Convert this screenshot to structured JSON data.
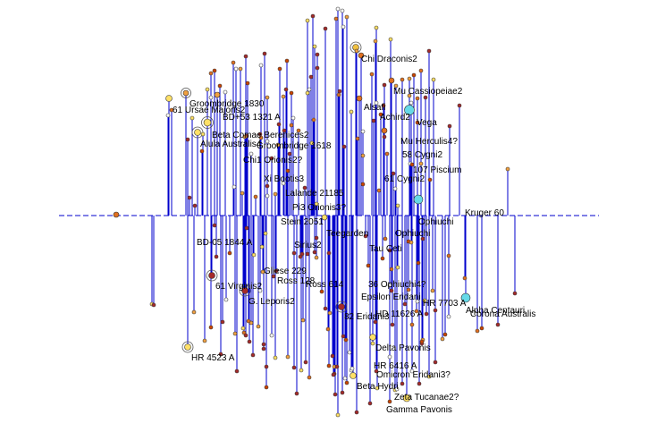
{
  "view": {
    "background": "#ffffff",
    "stem_color": "#0000cc",
    "baseline_color": "#0000cc"
  },
  "labels": [
    {
      "text": "Chi Draconis2"
    },
    {
      "text": "Mu Cassiopeiae2"
    },
    {
      "text": "Groombridge 1830"
    },
    {
      "text": "61 Ursae Majoris2"
    },
    {
      "text": "BD+53 1321 A"
    },
    {
      "text": "Alsafi"
    },
    {
      "text": "Achird2"
    },
    {
      "text": "Vega"
    },
    {
      "text": "Beta Comae Berenices2"
    },
    {
      "text": "Alula Australis4"
    },
    {
      "text": "Groombridge 1618"
    },
    {
      "text": "Mu Herculis4?"
    },
    {
      "text": "Chi1 Orionis2?"
    },
    {
      "text": "58 Cygni2"
    },
    {
      "text": "107 Piscium"
    },
    {
      "text": "61 Cygni2"
    },
    {
      "text": "Xi Bootis3"
    },
    {
      "text": "Lalande 21185"
    },
    {
      "text": "Pi3 Orionis3?"
    },
    {
      "text": "Kruger 60"
    },
    {
      "text": "Ophiuchi"
    },
    {
      "text": "Ophiuchi"
    },
    {
      "text": "Stein 2051"
    },
    {
      "text": "Sirius2"
    },
    {
      "text": "Teegarden"
    },
    {
      "text": "Tau Ceti"
    },
    {
      "text": "BD-05 1844 A"
    },
    {
      "text": "Gliese 229"
    },
    {
      "text": "61 Virginis2"
    },
    {
      "text": "Ross 128"
    },
    {
      "text": "Ross 614"
    },
    {
      "text": "36 Ophiuchi4?"
    },
    {
      "text": "Epsilon Eridani"
    },
    {
      "text": "HR 7703 A"
    },
    {
      "text": "Alpha Centauri"
    },
    {
      "text": "Corona Australis"
    },
    {
      "text": "G. Leporis2"
    },
    {
      "text": "82 Eridani3"
    },
    {
      "text": "HD 11626 A"
    },
    {
      "text": "Delta Pavonis"
    },
    {
      "text": "HR 4523 A"
    },
    {
      "text": "HR 6416 A"
    },
    {
      "text": "Omicron Eridani3?"
    },
    {
      "text": "Beta Hydri"
    },
    {
      "text": "Zeta Tucanae2?"
    },
    {
      "text": "Gamma Pavonis"
    }
  ]
}
